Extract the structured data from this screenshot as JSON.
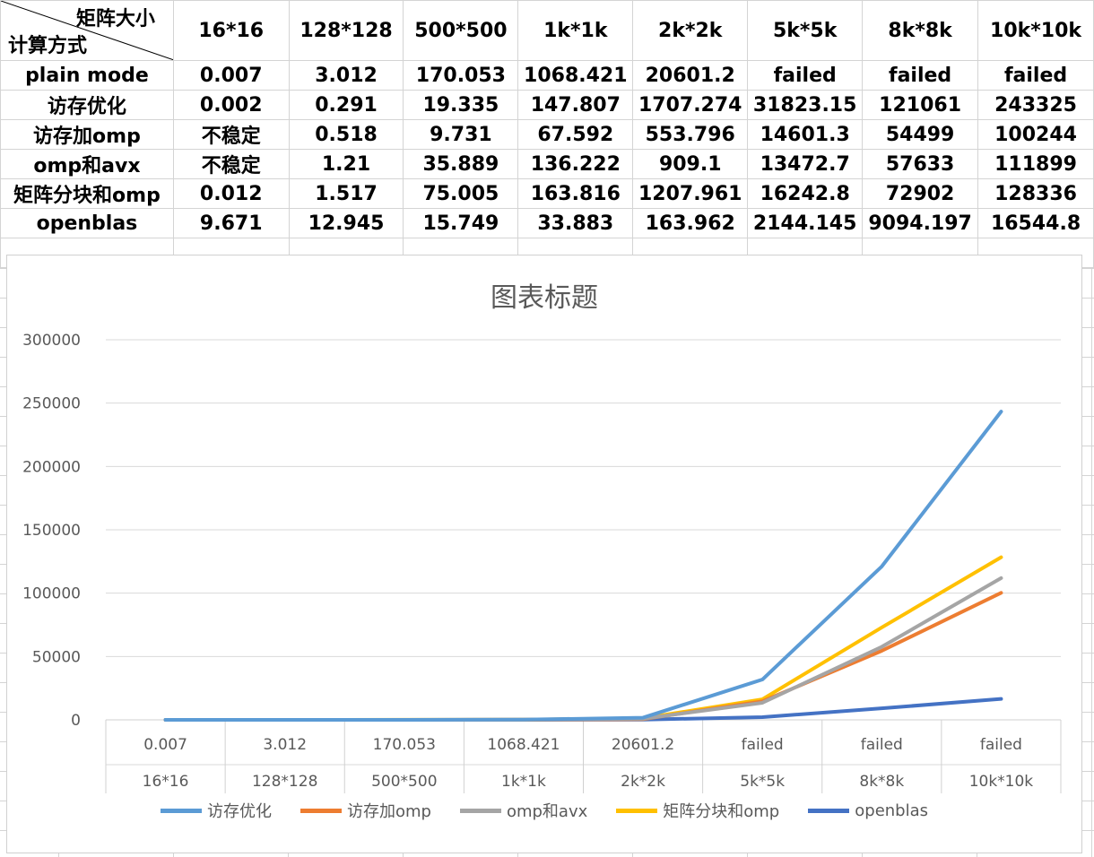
{
  "table": {
    "corner_top": "矩阵大小",
    "corner_bottom": "计算方式",
    "columns": [
      "16*16",
      "128*128",
      "500*500",
      "1k*1k",
      "2k*2k",
      "5k*5k",
      "8k*8k",
      "10k*10k"
    ],
    "rows": [
      {
        "label": "plain mode",
        "values": [
          "0.007",
          "3.012",
          "170.053",
          "1068.421",
          "20601.2",
          "failed",
          "failed",
          "failed"
        ]
      },
      {
        "label": "访存优化",
        "values": [
          "0.002",
          "0.291",
          "19.335",
          "147.807",
          "1707.274",
          "31823.15",
          "121061",
          "243325"
        ]
      },
      {
        "label": "访存加omp",
        "values": [
          "不稳定",
          "0.518",
          "9.731",
          "67.592",
          "553.796",
          "14601.3",
          "54499",
          "100244"
        ]
      },
      {
        "label": "omp和avx",
        "values": [
          "不稳定",
          "1.21",
          "35.889",
          "136.222",
          "909.1",
          "13472.7",
          "57633",
          "111899"
        ]
      },
      {
        "label": "矩阵分块和omp",
        "values": [
          "0.012",
          "1.517",
          "75.005",
          "163.816",
          "1207.961",
          "16242.8",
          "72902",
          "128336"
        ]
      },
      {
        "label": "openblas",
        "values": [
          "9.671",
          "12.945",
          "15.749",
          "33.883",
          "163.962",
          "2144.145",
          "9094.197",
          "16544.8"
        ]
      }
    ]
  },
  "chart_data": {
    "type": "line",
    "title": "图表标题",
    "categories": [
      {
        "top": "0.007",
        "bottom": "16*16"
      },
      {
        "top": "3.012",
        "bottom": "128*128"
      },
      {
        "top": "170.053",
        "bottom": "500*500"
      },
      {
        "top": "1068.421",
        "bottom": "1k*1k"
      },
      {
        "top": "20601.2",
        "bottom": "2k*2k"
      },
      {
        "top": "failed",
        "bottom": "5k*5k"
      },
      {
        "top": "failed",
        "bottom": "8k*8k"
      },
      {
        "top": "failed",
        "bottom": "10k*10k"
      }
    ],
    "ylim": [
      0,
      300000
    ],
    "yticks": [
      "0",
      "50000",
      "100000",
      "150000",
      "200000",
      "250000",
      "300000"
    ],
    "grid": true,
    "legend_position": "bottom",
    "series": [
      {
        "name": "访存优化",
        "color": "#5b9bd5",
        "values": [
          0.002,
          0.291,
          19.335,
          147.807,
          1707.274,
          31823.15,
          121061,
          243325
        ]
      },
      {
        "name": "访存加omp",
        "color": "#ed7d31",
        "values": [
          0,
          0.518,
          9.731,
          67.592,
          553.796,
          14601.3,
          54499,
          100244
        ]
      },
      {
        "name": "omp和avx",
        "color": "#a5a5a5",
        "values": [
          0,
          1.21,
          35.889,
          136.222,
          909.1,
          13472.7,
          57633,
          111899
        ]
      },
      {
        "name": "矩阵分块和omp",
        "color": "#ffc000",
        "values": [
          0.012,
          1.517,
          75.005,
          163.816,
          1207.961,
          16242.8,
          72902,
          128336
        ]
      },
      {
        "name": "openblas",
        "color": "#4472c4",
        "values": [
          9.671,
          12.945,
          15.749,
          33.883,
          163.962,
          2144.145,
          9094.197,
          16544.8
        ]
      }
    ]
  }
}
